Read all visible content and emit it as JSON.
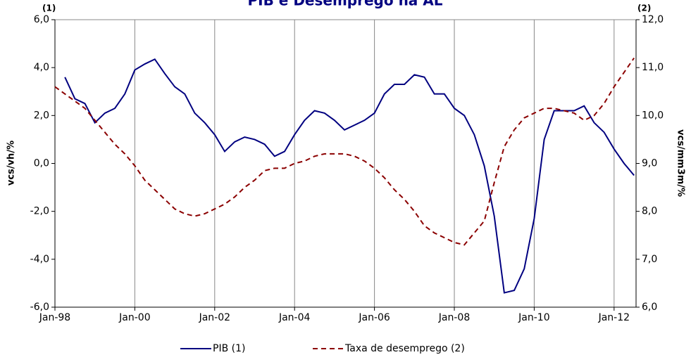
{
  "chart_data": {
    "type": "line",
    "title": "PIB e Desemprego na AL",
    "y_label": "vcs/vh/%",
    "y2_label": "vcs/mm3m/%",
    "annotations": [
      "(1)",
      "(2)"
    ],
    "xlim": [
      1998,
      2012.55
    ],
    "xticks": [
      {
        "value": 1998,
        "label": "Jan-98"
      },
      {
        "value": 2000,
        "label": "Jan-00"
      },
      {
        "value": 2002,
        "label": "Jan-02"
      },
      {
        "value": 2004,
        "label": "Jan-04"
      },
      {
        "value": 2006,
        "label": "Jan-06"
      },
      {
        "value": 2008,
        "label": "Jan-08"
      },
      {
        "value": 2010,
        "label": "Jan-10"
      },
      {
        "value": 2012,
        "label": "Jan-12"
      }
    ],
    "ylim": [
      -6,
      6
    ],
    "yticks": [
      {
        "value": -6,
        "label": "-6,0"
      },
      {
        "value": -4,
        "label": "-4,0"
      },
      {
        "value": -2,
        "label": "-2,0"
      },
      {
        "value": 0,
        "label": "0,0"
      },
      {
        "value": 2,
        "label": "2,0"
      },
      {
        "value": 4,
        "label": "4,0"
      },
      {
        "value": 6,
        "label": "6,0"
      }
    ],
    "y2lim": [
      6,
      12
    ],
    "y2ticks": [
      {
        "value": 6,
        "label": "6,0"
      },
      {
        "value": 7,
        "label": "7,0"
      },
      {
        "value": 8,
        "label": "8,0"
      },
      {
        "value": 9,
        "label": "9,0"
      },
      {
        "value": 10,
        "label": "10,0"
      },
      {
        "value": 11,
        "label": "11,0"
      },
      {
        "value": 12,
        "label": "12,0"
      }
    ],
    "grid": "x",
    "series": [
      {
        "name": "PIB (1)",
        "color": "#000080",
        "style": "solid",
        "axis": "y",
        "x": [
          1998.25,
          1998.5,
          1998.75,
          1999,
          1999.25,
          1999.5,
          1999.75,
          2000,
          2000.25,
          2000.5,
          2000.75,
          2001,
          2001.25,
          2001.5,
          2001.75,
          2002,
          2002.25,
          2002.5,
          2002.75,
          2003,
          2003.25,
          2003.5,
          2003.75,
          2004,
          2004.25,
          2004.5,
          2004.75,
          2005,
          2005.25,
          2005.5,
          2005.75,
          2006,
          2006.25,
          2006.5,
          2006.75,
          2007,
          2007.25,
          2007.5,
          2007.75,
          2008,
          2008.25,
          2008.5,
          2008.75,
          2009,
          2009.25,
          2009.5,
          2009.75,
          2010,
          2010.25,
          2010.5,
          2010.75,
          2011,
          2011.25,
          2011.5,
          2011.75,
          2012,
          2012.25,
          2012.5
        ],
        "values": [
          3.6,
          2.7,
          2.5,
          1.7,
          2.1,
          2.3,
          2.9,
          3.9,
          4.15,
          4.35,
          3.75,
          3.2,
          2.9,
          2.1,
          1.7,
          1.2,
          0.5,
          0.9,
          1.1,
          1.0,
          0.8,
          0.3,
          0.5,
          1.2,
          1.8,
          2.2,
          2.1,
          1.8,
          1.4,
          1.6,
          1.8,
          2.1,
          2.9,
          3.3,
          3.3,
          3.7,
          3.6,
          2.9,
          2.9,
          2.3,
          2.0,
          1.2,
          -0.1,
          -2.2,
          -5.4,
          -5.3,
          -4.4,
          -2.3,
          1.0,
          2.2,
          2.2,
          2.2,
          2.4,
          1.7,
          1.3,
          0.6,
          0.0,
          -0.5
        ]
      },
      {
        "name": "Taxa de desemprego (2)",
        "color": "#8b0000",
        "style": "dashed",
        "axis": "y2",
        "x": [
          1998,
          1998.25,
          1998.5,
          1998.75,
          1999,
          1999.25,
          1999.5,
          1999.75,
          2000,
          2000.25,
          2000.5,
          2000.75,
          2001,
          2001.25,
          2001.5,
          2001.75,
          2002,
          2002.25,
          2002.5,
          2002.75,
          2003,
          2003.25,
          2003.5,
          2003.75,
          2004,
          2004.25,
          2004.5,
          2004.75,
          2005,
          2005.25,
          2005.5,
          2005.75,
          2006,
          2006.25,
          2006.5,
          2006.75,
          2007,
          2007.25,
          2007.5,
          2007.75,
          2008,
          2008.25,
          2008.5,
          2008.75,
          2009,
          2009.25,
          2009.5,
          2009.75,
          2010,
          2010.25,
          2010.5,
          2010.75,
          2011,
          2011.25,
          2011.5,
          2011.75,
          2012,
          2012.25,
          2012.5
        ],
        "values": [
          10.6,
          10.45,
          10.3,
          10.15,
          9.9,
          9.65,
          9.4,
          9.2,
          8.95,
          8.65,
          8.45,
          8.25,
          8.05,
          7.95,
          7.9,
          7.95,
          8.05,
          8.15,
          8.3,
          8.5,
          8.65,
          8.85,
          8.9,
          8.9,
          9.0,
          9.05,
          9.15,
          9.2,
          9.2,
          9.2,
          9.15,
          9.05,
          8.9,
          8.7,
          8.45,
          8.25,
          8.0,
          7.7,
          7.55,
          7.45,
          7.35,
          7.3,
          7.55,
          7.8,
          8.6,
          9.35,
          9.7,
          9.95,
          10.05,
          10.15,
          10.15,
          10.1,
          10.05,
          9.9,
          10.0,
          10.25,
          10.6,
          10.9,
          11.2
        ]
      }
    ]
  }
}
